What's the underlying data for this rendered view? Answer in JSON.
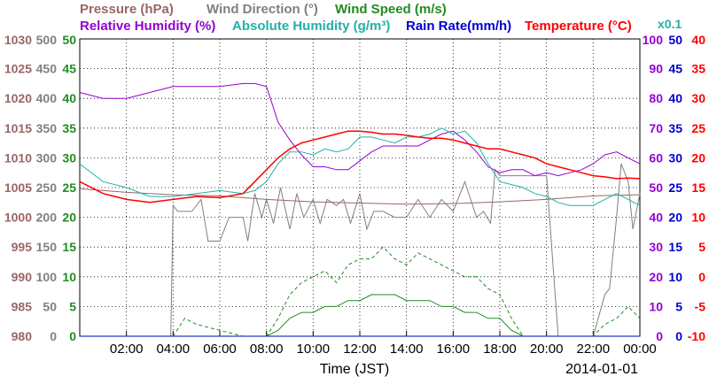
{
  "chart_data": {
    "type": "line",
    "legend_row1": [
      {
        "text": "Pressure (hPa)",
        "color": "#996666"
      },
      {
        "text": "Wind Direction (°)",
        "color": "#808080"
      },
      {
        "text": "Wind Speed (m/s)",
        "color": "#228B22"
      }
    ],
    "legend_row2": [
      {
        "text": "Relative Humidity (%)",
        "color": "#9400D3"
      },
      {
        "text": "Absolute Humidity (g/m³)",
        "color": "#20B2AA"
      },
      {
        "text": "Rain Rate(mm/h)",
        "color": "#0000CD"
      },
      {
        "text": "Temperature (°C)",
        "color": "#FF0000"
      }
    ],
    "multiplier_label": "x0.1",
    "xlabel": "Time (JST)",
    "date_label": "2014-01-01",
    "x_ticks": [
      "02:00",
      "04:00",
      "06:00",
      "08:00",
      "10:00",
      "12:00",
      "14:00",
      "16:00",
      "18:00",
      "20:00",
      "22:00",
      "00:00"
    ],
    "x_range_hours": [
      0,
      24
    ],
    "grid": true,
    "axes": {
      "pressure": {
        "color": "#996666",
        "range": [
          980,
          1030
        ],
        "ticks": [
          "1030",
          "1025",
          "1020",
          "1015",
          "1010",
          "1005",
          "1000",
          "995",
          "990",
          "985",
          "980"
        ]
      },
      "wind_direction": {
        "color": "#808080",
        "range": [
          0,
          500
        ],
        "ticks": [
          "500",
          "450",
          "400",
          "350",
          "300",
          "250",
          "200",
          "150",
          "100",
          "50",
          "0"
        ]
      },
      "wind_speed": {
        "color": "#228B22",
        "range": [
          0,
          50
        ],
        "ticks": [
          "50",
          "45",
          "40",
          "35",
          "30",
          "25",
          "20",
          "15",
          "10",
          "5",
          "0"
        ]
      },
      "humidity": {
        "color": "#9400D3",
        "range": [
          0,
          100
        ],
        "ticks": [
          "100",
          "90",
          "80",
          "70",
          "60",
          "50",
          "40",
          "30",
          "20",
          "10",
          "0"
        ]
      },
      "rain_rate": {
        "color": "#0000CD",
        "range": [
          0,
          50
        ],
        "ticks": [
          "50",
          "45",
          "40",
          "35",
          "30",
          "25",
          "20",
          "15",
          "10",
          "5",
          "0"
        ]
      },
      "temperature": {
        "color": "#FF0000",
        "range": [
          -10,
          40
        ],
        "ticks": [
          "40",
          "35",
          "30",
          "25",
          "20",
          "15",
          "10",
          "5",
          "0",
          "-5",
          "-10"
        ]
      }
    },
    "series": [
      {
        "name": "Pressure",
        "axis": "pressure",
        "color": "#996666",
        "dashed": false,
        "x": [
          0,
          2,
          4,
          6,
          8,
          10,
          12,
          14,
          16,
          18,
          20,
          22,
          24
        ],
        "y": [
          1004.8,
          1004.2,
          1003.8,
          1003.6,
          1003.0,
          1002.6,
          1002.4,
          1002.2,
          1002.3,
          1002.6,
          1003.0,
          1003.6,
          1003.8
        ]
      },
      {
        "name": "Wind Direction",
        "axis": "wind_direction",
        "color": "#808080",
        "dashed": false,
        "x": [
          0,
          3.9,
          4.0,
          4.2,
          4.8,
          5.2,
          5.5,
          6.0,
          6.4,
          7.0,
          7.2,
          7.5,
          7.8,
          8.0,
          8.3,
          8.6,
          9.0,
          9.3,
          9.6,
          10.0,
          10.3,
          10.6,
          11.0,
          11.3,
          11.6,
          12.0,
          12.3,
          12.6,
          13.0,
          13.5,
          14.0,
          14.5,
          15.0,
          15.5,
          16.0,
          16.5,
          17.0,
          17.3,
          17.6,
          17.8,
          18.0,
          18.3,
          19.0,
          19.5,
          20.0,
          20.5,
          21.0,
          22.0,
          22.5,
          22.7,
          23.0,
          23.2,
          23.5,
          23.7,
          24.0
        ],
        "y": [
          0,
          0,
          220,
          210,
          210,
          230,
          160,
          160,
          200,
          200,
          160,
          240,
          200,
          230,
          190,
          250,
          180,
          240,
          200,
          230,
          190,
          230,
          220,
          230,
          190,
          240,
          180,
          210,
          210,
          200,
          200,
          230,
          200,
          230,
          210,
          260,
          200,
          210,
          190,
          280,
          270,
          270,
          270,
          270,
          270,
          0,
          0,
          0,
          70,
          80,
          200,
          290,
          260,
          180,
          240
        ]
      },
      {
        "name": "Wind Speed (max)",
        "axis": "wind_speed",
        "color": "#228B22",
        "dashed": true,
        "x": [
          0,
          2,
          4,
          4.5,
          5,
          6,
          7,
          7.5,
          8,
          8.5,
          9,
          9.5,
          10,
          10.5,
          11,
          11.5,
          12,
          12.5,
          13,
          13.5,
          14,
          14.5,
          15,
          15.5,
          16,
          16.5,
          17,
          17.5,
          18,
          18.5,
          19,
          19.5,
          20,
          21,
          22,
          22.5,
          23,
          23.5,
          24
        ],
        "y": [
          0,
          0,
          0,
          3,
          2,
          1,
          0,
          0,
          0,
          3,
          7,
          9,
          10,
          11,
          9,
          12,
          13,
          13,
          15,
          13,
          12,
          14,
          13,
          12,
          11,
          10,
          10,
          8,
          7,
          3,
          0,
          0,
          0,
          0,
          0,
          2,
          3,
          5,
          3
        ]
      },
      {
        "name": "Wind Speed (mean)",
        "axis": "wind_speed",
        "color": "#228B22",
        "dashed": false,
        "x": [
          0,
          2,
          4,
          6,
          7.5,
          8,
          8.5,
          9,
          9.5,
          10,
          10.5,
          11,
          11.5,
          12,
          12.5,
          13,
          13.5,
          14,
          14.5,
          15,
          15.5,
          16,
          16.5,
          17,
          17.5,
          18,
          18.5,
          19,
          20,
          21,
          22,
          23,
          24
        ],
        "y": [
          0,
          0,
          0,
          0,
          0,
          0,
          1,
          3,
          4,
          4,
          5,
          5,
          6,
          6,
          7,
          7,
          7,
          6,
          6,
          6,
          5,
          5,
          4,
          4,
          3,
          3,
          1,
          0,
          0,
          0,
          0,
          0,
          0
        ]
      },
      {
        "name": "Relative Humidity",
        "axis": "humidity",
        "color": "#9400D3",
        "dashed": false,
        "x": [
          0,
          1,
          2,
          3,
          4,
          5,
          6,
          7,
          7.5,
          8,
          8.5,
          9,
          9.5,
          10,
          10.5,
          11,
          11.5,
          12,
          12.5,
          13,
          13.5,
          14,
          14.5,
          15,
          15.5,
          16,
          16.5,
          17,
          17.5,
          18,
          18.5,
          19,
          19.5,
          20,
          20.5,
          21,
          21.5,
          22,
          22.5,
          23,
          23.5,
          24
        ],
        "y": [
          82,
          80,
          80,
          82,
          84,
          84,
          84,
          85,
          85,
          84,
          72,
          66,
          61,
          57,
          57,
          56,
          56,
          59,
          62,
          64,
          64,
          64,
          64,
          66,
          68,
          69,
          66,
          62,
          57,
          55,
          56,
          56,
          54,
          55,
          54,
          55,
          56,
          58,
          61,
          62,
          60,
          58
        ]
      },
      {
        "name": "Absolute Humidity",
        "axis": "humidity",
        "color": "#20B2AA",
        "dashed": false,
        "x": [
          0,
          1,
          2,
          3,
          4,
          5,
          6,
          7,
          7.5,
          8,
          8.5,
          9,
          9.5,
          10,
          10.5,
          11,
          11.5,
          12,
          12.5,
          13,
          13.5,
          14,
          14.5,
          15,
          15.5,
          16,
          16.5,
          17,
          17.5,
          18,
          18.5,
          19,
          19.5,
          20,
          20.5,
          21,
          21.5,
          22,
          22.5,
          23,
          23.5,
          24
        ],
        "y": [
          58,
          52,
          50,
          47,
          47,
          48,
          49,
          48,
          49,
          52,
          58,
          62,
          62,
          61,
          63,
          62,
          63,
          67,
          67,
          66,
          65,
          67,
          67,
          68,
          70,
          68,
          69,
          65,
          58,
          52,
          51,
          50,
          48,
          47,
          45,
          44,
          44,
          44,
          46,
          48,
          46,
          44
        ]
      },
      {
        "name": "Temperature",
        "axis": "temperature",
        "color": "#FF0000",
        "dashed": false,
        "x": [
          0,
          1,
          2,
          3,
          4,
          5,
          6,
          7,
          7.5,
          8,
          8.5,
          9,
          9.5,
          10,
          10.5,
          11,
          11.5,
          12,
          12.5,
          13,
          13.5,
          14,
          14.5,
          15,
          15.5,
          16,
          16.5,
          17,
          17.5,
          18,
          18.5,
          19,
          19.5,
          20,
          20.5,
          21,
          21.5,
          22,
          22.5,
          23,
          23.5,
          24
        ],
        "y": [
          16,
          14,
          13,
          12.5,
          13,
          13.5,
          13.3,
          14,
          16,
          18,
          20,
          21.5,
          22.5,
          23,
          23.5,
          24,
          24.5,
          24.5,
          24.3,
          24,
          24,
          23.8,
          23.5,
          23.3,
          23.3,
          23,
          22.5,
          22,
          21.5,
          21.5,
          21,
          20.5,
          20,
          19,
          18.5,
          18,
          17.5,
          17,
          16.8,
          16.5,
          16.6,
          16.5
        ]
      },
      {
        "name": "Rain Rate",
        "axis": "rain_rate",
        "color": "#0000CD",
        "dashed": false,
        "x": [
          0,
          24
        ],
        "y": [
          0,
          0
        ]
      }
    ]
  }
}
